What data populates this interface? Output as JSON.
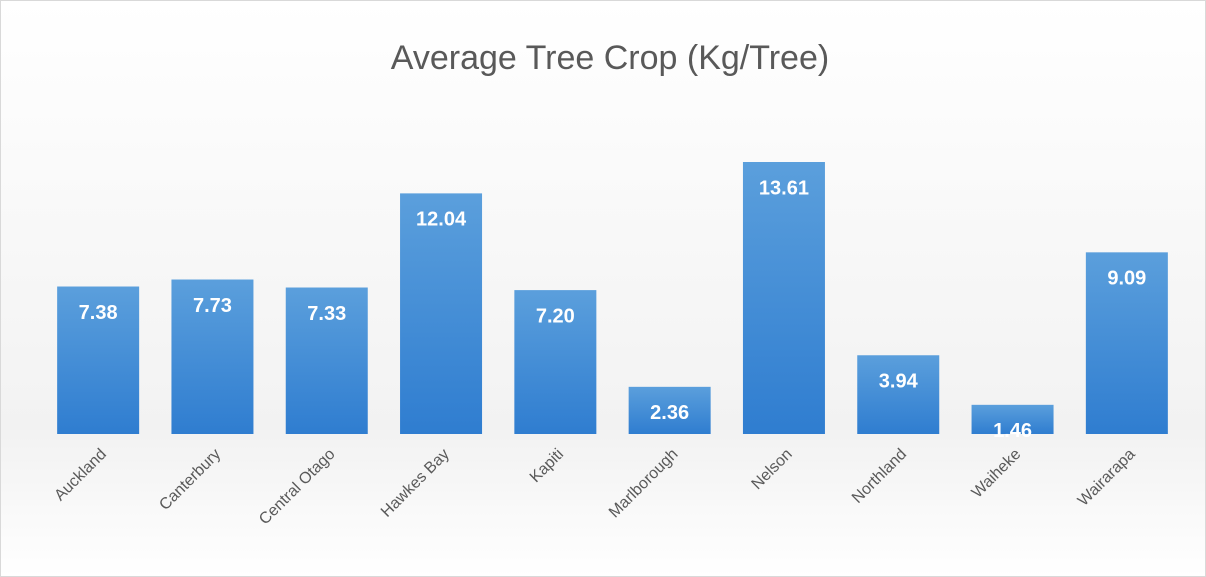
{
  "chart_data": {
    "type": "bar",
    "title": "Average Tree Crop (Kg/Tree)",
    "categories": [
      "Auckland",
      "Canterbury",
      "Central Otago",
      "Hawkes Bay",
      "Kapiti",
      "Marlborough",
      "Nelson",
      "Northland",
      "Waiheke",
      "Wairarapa"
    ],
    "values": [
      7.38,
      7.73,
      7.33,
      12.04,
      7.2,
      2.36,
      13.61,
      3.94,
      1.46,
      9.09
    ],
    "value_labels": [
      "7.38",
      "7.73",
      "7.33",
      "12.04",
      "7.20",
      "2.36",
      "13.61",
      "3.94",
      "1.46",
      "9.09"
    ],
    "color": "#4a90d9"
  }
}
